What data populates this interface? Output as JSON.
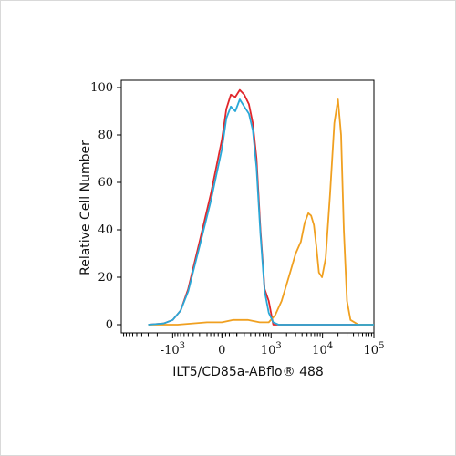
{
  "chart_data": {
    "type": "line",
    "title": "",
    "xlabel": "ILT5/CD85a-ABflo® 488",
    "ylabel": "Relative Cell Number",
    "xscale": "biexponential",
    "xlim": [
      -10000,
      100000
    ],
    "ylim": [
      0,
      100
    ],
    "yticks": [
      0,
      20,
      40,
      60,
      80,
      100
    ],
    "xtick_labels": [
      {
        "value": -1000,
        "base": "-10",
        "exp": "3"
      },
      {
        "value": 0,
        "base": "0",
        "exp": ""
      },
      {
        "value": 1000,
        "base": "10",
        "exp": "3"
      },
      {
        "value": 10000,
        "base": "10",
        "exp": "4"
      },
      {
        "value": 100000,
        "base": "10",
        "exp": "5"
      }
    ],
    "grid": false,
    "legend": "none",
    "series": [
      {
        "color": "#e0262b",
        "x": [
          -3000,
          -1500,
          -1000,
          -700,
          -500,
          -300,
          -150,
          0,
          60,
          120,
          180,
          240,
          300,
          370,
          440,
          520,
          620,
          750,
          900,
          1100,
          1400,
          2000,
          4000,
          10000,
          30000,
          100000
        ],
        "y": [
          0,
          0.5,
          2,
          6,
          15,
          35,
          55,
          78,
          91,
          97,
          96,
          99,
          97,
          93,
          85,
          70,
          40,
          15,
          10,
          0,
          0,
          0,
          0,
          0,
          0,
          0
        ]
      },
      {
        "color": "#f0a020",
        "x": [
          -3000,
          -800,
          -200,
          0,
          150,
          350,
          600,
          900,
          1200,
          1600,
          2200,
          3000,
          3800,
          4500,
          5300,
          6000,
          6800,
          7600,
          8500,
          9800,
          11500,
          14000,
          17000,
          20000,
          23000,
          26000,
          30000,
          35000,
          50000,
          100000
        ],
        "y": [
          0,
          0,
          1,
          1,
          2,
          2,
          1,
          1,
          4,
          10,
          20,
          30,
          35,
          43,
          47,
          46,
          42,
          33,
          22,
          20,
          28,
          55,
          85,
          95,
          80,
          40,
          10,
          2,
          0,
          0
        ]
      },
      {
        "color": "#29a8d8",
        "x": [
          -3000,
          -1500,
          -1000,
          -700,
          -500,
          -300,
          -150,
          0,
          60,
          120,
          180,
          240,
          300,
          370,
          440,
          520,
          620,
          750,
          900,
          1100,
          1400,
          2000,
          4000,
          10000,
          30000,
          100000
        ],
        "y": [
          0,
          0.5,
          2,
          6,
          14,
          33,
          52,
          74,
          87,
          92,
          90,
          95,
          92,
          89,
          82,
          66,
          38,
          14,
          5,
          1,
          0,
          0,
          0,
          0,
          0,
          0
        ]
      }
    ]
  }
}
